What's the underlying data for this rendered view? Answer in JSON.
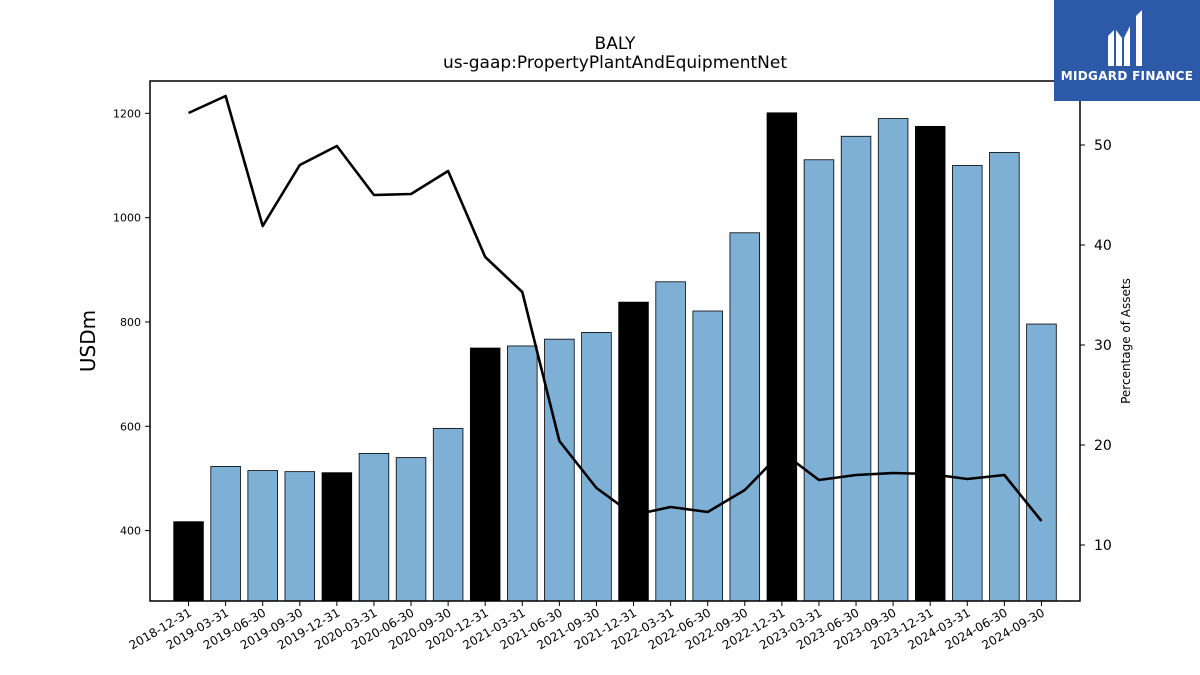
{
  "brand": {
    "name": "MIDGARD FINANCE",
    "bg": "#2d5aa8"
  },
  "chart_data": {
    "type": "bar",
    "title": "BALY",
    "subtitle": "us-gaap:PropertyPlantAndEquipmentNet",
    "ylabel": "USDm",
    "y2label": "Percentage of Assets",
    "ylim": [
      265,
      1262
    ],
    "y2lim": [
      4.4,
      56.4
    ],
    "yticks": [
      400,
      600,
      800,
      1000,
      1200
    ],
    "y2ticks": [
      10,
      20,
      30,
      40,
      50
    ],
    "categories": [
      "2018-12-31",
      "2019-03-31",
      "2019-06-30",
      "2019-09-30",
      "2019-12-31",
      "2020-03-31",
      "2020-06-30",
      "2020-09-30",
      "2020-12-31",
      "2021-03-31",
      "2021-06-30",
      "2021-09-30",
      "2021-12-31",
      "2022-03-31",
      "2022-06-30",
      "2022-09-30",
      "2022-12-31",
      "2023-03-31",
      "2023-06-30",
      "2023-09-30",
      "2023-12-31",
      "2024-03-31",
      "2024-06-30",
      "2024-09-30"
    ],
    "values": [
      417,
      523,
      515,
      513,
      511,
      548,
      540,
      596,
      750,
      754,
      767,
      780,
      838,
      877,
      821,
      971,
      1201,
      1111,
      1156,
      1190,
      1175,
      1100,
      1125,
      796
    ],
    "highlight": [
      true,
      false,
      false,
      false,
      true,
      false,
      false,
      false,
      true,
      false,
      false,
      false,
      true,
      false,
      false,
      false,
      true,
      false,
      false,
      false,
      true,
      false,
      false,
      false
    ],
    "line_values": [
      53.2,
      54.9,
      41.9,
      48.0,
      49.9,
      45.0,
      45.1,
      47.4,
      38.8,
      35.3,
      20.4,
      15.7,
      13.0,
      13.8,
      13.3,
      15.5,
      19.3,
      16.5,
      17.0,
      17.2,
      17.1,
      16.6,
      17.0,
      12.4
    ],
    "colors": {
      "bar": "#7eb0d5",
      "bar_highlight": "#000000",
      "line": "#000000",
      "edge": "#000000"
    }
  }
}
